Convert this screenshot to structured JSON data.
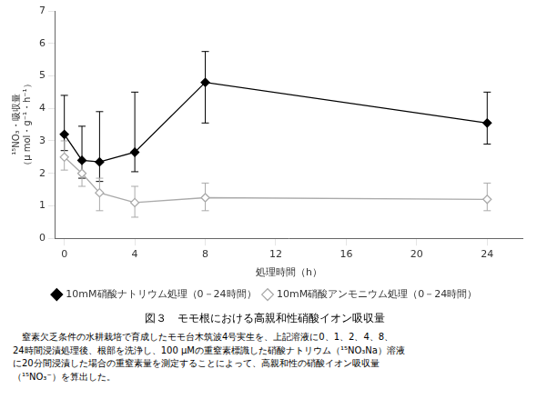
{
  "chart_data": {
    "type": "line",
    "title": "図３　モモ根における高親和性硝酸イオン吸収量",
    "xlabel": "処理時間（h）",
    "ylabel": [
      "¹⁵NO₃・吸収量",
      "（μ mol・g⁻¹・h⁻¹）"
    ],
    "caption": "　窒素欠乏条件の水耕栽培で育成したモモ台木筑波4号実生を、上記溶液に0、1、2、4、8、\n24時間浸漬処理後、根部を洗浄し、100 μMの重窒素標識した硝酸ナトリウム（¹⁵NO₃Na）溶液\nに20分間浸漬した場合の重窒素量を測定することによって、高親和性の硝酸イオン吸収量\n（¹⁵NO₃⁻）を算出した。",
    "x": [
      0,
      1,
      2,
      4,
      8,
      24
    ],
    "series": [
      {
        "name": "10mM硝酸ナトリウム処理（0－24時間）",
        "color": "#000000",
        "marker": "diamond",
        "line_style": "solid",
        "values": [
          3.2,
          2.4,
          2.35,
          2.65,
          4.8,
          3.55
        ],
        "error_lower": [
          0.5,
          0.55,
          0.6,
          0.6,
          1.25,
          0.65
        ],
        "error_upper": [
          1.2,
          1.05,
          1.55,
          1.85,
          0.95,
          0.95
        ]
      },
      {
        "name": "10mM硝酸アンモニウム処理（0－24時間）",
        "color": "#aaaaaa",
        "marker": "diamond_open",
        "line_style": "solid",
        "values": [
          2.5,
          2.0,
          1.4,
          1.1,
          1.25,
          1.2
        ],
        "error_lower": [
          0.4,
          0.4,
          0.55,
          0.45,
          0.4,
          0.35
        ],
        "error_upper": [
          0.5,
          0.35,
          0.45,
          0.5,
          0.45,
          0.5
        ]
      }
    ],
    "xlim": [
      -0.5,
      26
    ],
    "xticks": [
      0,
      4,
      8,
      12,
      16,
      20,
      24
    ],
    "ylim": [
      0,
      7
    ],
    "yticks": [
      0,
      1,
      2,
      3,
      4,
      5,
      6,
      7
    ],
    "grid": false,
    "legend": "bottom"
  }
}
